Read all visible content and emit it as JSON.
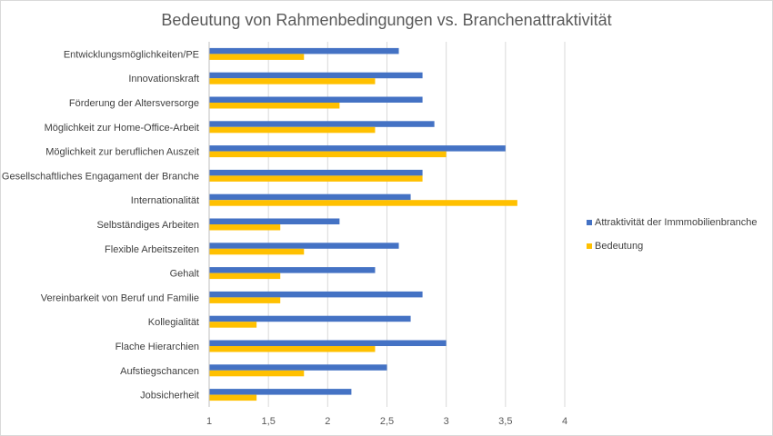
{
  "chart_data": {
    "type": "bar",
    "orientation": "horizontal",
    "title": "Bedeutung von Rahmenbedingungen vs. Branchenattraktivität",
    "categories": [
      "Entwicklungsmöglichkeiten/PE",
      "Innovationskraft",
      "Förderung der Altersversorge",
      "Möglichkeit zur Home-Office-Arbeit",
      "Möglichkeit zur beruflichen Auszeit",
      "Gesellschaftliches Engagament der Branche",
      "Internationalität",
      "Selbständiges Arbeiten",
      "Flexible Arbeitszeiten",
      "Gehalt",
      "Vereinbarkeit von Beruf und Familie",
      "Kollegialität",
      "Flache Hierarchien",
      "Aufstiegschancen",
      "Jobsicherheit"
    ],
    "series": [
      {
        "name": "Attraktivität der Immmobilienbranche",
        "color": "#4472C4",
        "values": [
          2.6,
          2.8,
          2.8,
          2.9,
          3.5,
          2.8,
          2.7,
          2.1,
          2.6,
          2.4,
          2.8,
          2.7,
          3.0,
          2.5,
          2.2
        ]
      },
      {
        "name": "Bedeutung",
        "color": "#FFC000",
        "values": [
          1.8,
          2.4,
          2.1,
          2.4,
          3.0,
          2.8,
          3.6,
          1.6,
          1.8,
          1.6,
          1.6,
          1.4,
          2.4,
          1.8,
          1.4
        ]
      }
    ],
    "xlim": [
      1,
      4
    ],
    "xticks": [
      "1",
      "1,5",
      "2",
      "2,5",
      "3",
      "3,5",
      "4"
    ],
    "grid": true,
    "legend_position": "right",
    "xlabel": "",
    "ylabel": ""
  }
}
